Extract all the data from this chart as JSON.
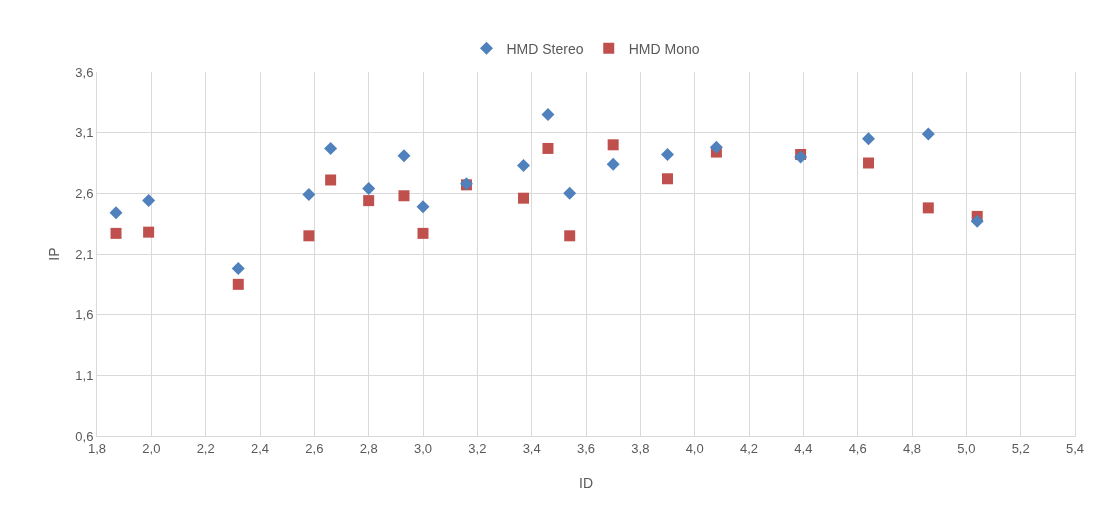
{
  "chart_data": {
    "type": "scatter",
    "xlabel": "ID",
    "ylabel": "IP",
    "legend": "top",
    "grid": true,
    "x": [
      1.87,
      1.99,
      2.32,
      2.58,
      2.66,
      2.8,
      2.93,
      3.0,
      3.16,
      3.37,
      3.46,
      3.54,
      3.7,
      3.9,
      4.08,
      4.39,
      4.64,
      4.86,
      5.04
    ],
    "series": [
      {
        "name": "HMD Stereo",
        "color": "#4f81bd",
        "marker": "diamond",
        "values": [
          2.44,
          2.54,
          1.98,
          2.59,
          2.97,
          2.64,
          2.91,
          2.49,
          2.68,
          2.83,
          3.25,
          2.6,
          2.84,
          2.92,
          2.98,
          2.9,
          3.05,
          3.09,
          2.37
        ]
      },
      {
        "name": "HMD Mono",
        "color": "#c0504d",
        "marker": "square",
        "values": [
          2.27,
          2.28,
          1.85,
          2.25,
          2.71,
          2.54,
          2.58,
          2.27,
          2.67,
          2.56,
          2.97,
          2.25,
          3.0,
          2.72,
          2.94,
          2.92,
          2.85,
          2.48,
          2.41
        ]
      }
    ],
    "xlim": [
      1.8,
      5.4
    ],
    "xticks": [
      {
        "value": 1.8,
        "label": "1,8"
      },
      {
        "value": 2.0,
        "label": "2,0"
      },
      {
        "value": 2.2,
        "label": "2,2"
      },
      {
        "value": 2.4,
        "label": "2,4"
      },
      {
        "value": 2.6,
        "label": "2,6"
      },
      {
        "value": 2.8,
        "label": "2,8"
      },
      {
        "value": 3.0,
        "label": "3,0"
      },
      {
        "value": 3.2,
        "label": "3,2"
      },
      {
        "value": 3.4,
        "label": "3,4"
      },
      {
        "value": 3.6,
        "label": "3,6"
      },
      {
        "value": 3.8,
        "label": "3,8"
      },
      {
        "value": 4.0,
        "label": "4,0"
      },
      {
        "value": 4.2,
        "label": "4,2"
      },
      {
        "value": 4.4,
        "label": "4,4"
      },
      {
        "value": 4.6,
        "label": "4,6"
      },
      {
        "value": 4.8,
        "label": "4,8"
      },
      {
        "value": 5.0,
        "label": "5,0"
      },
      {
        "value": 5.2,
        "label": "5,2"
      },
      {
        "value": 5.4,
        "label": "5,4"
      }
    ],
    "ylim": [
      0.6,
      3.6
    ],
    "yticks": [
      {
        "value": 0.6,
        "label": "0,6"
      },
      {
        "value": 1.1,
        "label": "1,1"
      },
      {
        "value": 1.6,
        "label": "1,6"
      },
      {
        "value": 2.1,
        "label": "2,1"
      },
      {
        "value": 2.6,
        "label": "2,6"
      },
      {
        "value": 3.1,
        "label": "3,1"
      },
      {
        "value": 3.6,
        "label": "3,6"
      }
    ]
  }
}
